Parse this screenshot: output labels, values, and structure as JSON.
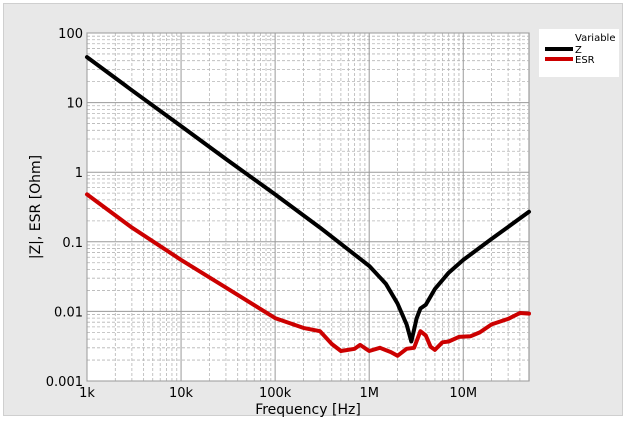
{
  "chart_data": {
    "type": "line",
    "xlabel": "Frequency [Hz]",
    "ylabel": "|Z|, ESR [Ohm]",
    "x_scale": "log",
    "y_scale": "log",
    "xlim": [
      1000,
      50000000
    ],
    "ylim": [
      0.001,
      100
    ],
    "x_tick_labels": [
      "1k",
      "10k",
      "100k",
      "1M",
      "10M"
    ],
    "x_tick_values": [
      1000,
      10000,
      100000,
      1000000,
      10000000
    ],
    "y_tick_labels": [
      "0.001",
      "0.01",
      "0.1",
      "1",
      "10",
      "100"
    ],
    "y_tick_values": [
      0.001,
      0.01,
      0.1,
      1,
      10,
      100
    ],
    "grid": true,
    "legend": {
      "title": "Variable",
      "placement": "top-right-outside"
    },
    "series": [
      {
        "name": "Z",
        "color": "#000000",
        "points": [
          [
            1000,
            45
          ],
          [
            3000,
            15
          ],
          [
            10000,
            4.6
          ],
          [
            30000,
            1.55
          ],
          [
            100000,
            0.48
          ],
          [
            300000,
            0.16
          ],
          [
            1000000,
            0.045
          ],
          [
            1500000,
            0.025
          ],
          [
            2000000,
            0.013
          ],
          [
            2500000,
            0.0065
          ],
          [
            2800000,
            0.0037
          ],
          [
            3000000,
            0.0055
          ],
          [
            3200000,
            0.008
          ],
          [
            3500000,
            0.011
          ],
          [
            4000000,
            0.0125
          ],
          [
            5000000,
            0.021
          ],
          [
            7000000,
            0.036
          ],
          [
            10000000,
            0.055
          ],
          [
            20000000,
            0.11
          ],
          [
            50000000,
            0.27
          ]
        ]
      },
      {
        "name": "ESR",
        "color": "#cc0000",
        "points": [
          [
            1000,
            0.48
          ],
          [
            3000,
            0.16
          ],
          [
            10000,
            0.055
          ],
          [
            30000,
            0.022
          ],
          [
            100000,
            0.008
          ],
          [
            200000,
            0.0058
          ],
          [
            300000,
            0.0052
          ],
          [
            400000,
            0.0034
          ],
          [
            500000,
            0.0027
          ],
          [
            700000,
            0.0029
          ],
          [
            800000,
            0.0033
          ],
          [
            1000000,
            0.0027
          ],
          [
            1300000,
            0.003
          ],
          [
            1700000,
            0.0026
          ],
          [
            2000000,
            0.0023
          ],
          [
            2500000,
            0.0029
          ],
          [
            3000000,
            0.003
          ],
          [
            3500000,
            0.0052
          ],
          [
            4000000,
            0.0045
          ],
          [
            4500000,
            0.0031
          ],
          [
            5000000,
            0.0028
          ],
          [
            6000000,
            0.0036
          ],
          [
            7000000,
            0.0037
          ],
          [
            9000000,
            0.0043
          ],
          [
            12000000,
            0.0044
          ],
          [
            15000000,
            0.005
          ],
          [
            20000000,
            0.0065
          ],
          [
            30000000,
            0.0078
          ],
          [
            40000000,
            0.0095
          ],
          [
            50000000,
            0.0093
          ]
        ]
      }
    ]
  }
}
